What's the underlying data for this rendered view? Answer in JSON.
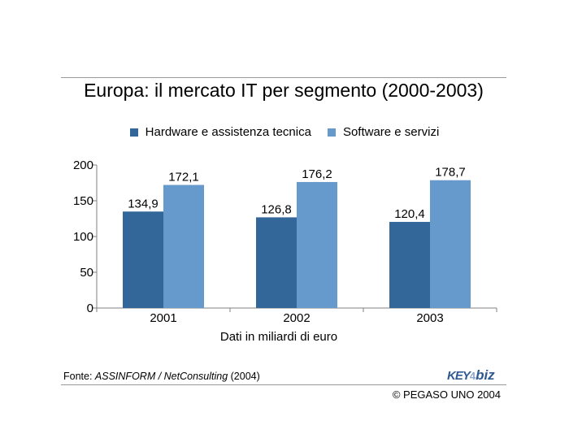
{
  "title": "Europa: il mercato IT per segmento (2000-2003)",
  "source": {
    "prefix": "Fonte: ",
    "name": "ASSINFORM / NetConsulting",
    "year": " (2004)"
  },
  "copyright": "© PEGASO UNO 2004",
  "logo": {
    "key": "KEY",
    "sep": "4",
    "biz": "biz"
  },
  "colors": {
    "series1": "#336699",
    "series2": "#6699cc",
    "axis": "#808080"
  },
  "chart_data": {
    "type": "bar",
    "categories": [
      "2001",
      "2002",
      "2003"
    ],
    "series": [
      {
        "name": "Hardware e assistenza tecnica",
        "values": [
          134.9,
          126.8,
          120.4
        ],
        "labels": [
          "134,9",
          "126,8",
          "120,4"
        ]
      },
      {
        "name": "Software e servizi",
        "values": [
          172.1,
          176.2,
          178.7
        ],
        "labels": [
          "172,1",
          "176,2",
          "178,7"
        ]
      }
    ],
    "xlabel": "Dati in miliardi di euro",
    "ylabel": "",
    "ylim": [
      0,
      200
    ],
    "yticks": [
      0,
      50,
      100,
      150,
      200
    ],
    "legend": "top",
    "grid": false
  }
}
